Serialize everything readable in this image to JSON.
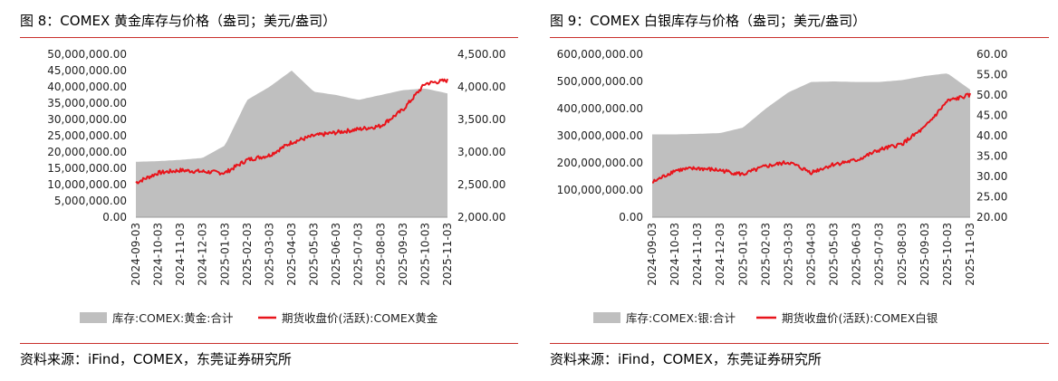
{
  "charts": [
    {
      "fig_title": "图 8：COMEX 黄金库存与价格（盎司；美元/盎司）",
      "source": "资料来源：iFind，COMEX，东莞证券研究所",
      "chart_data": {
        "type": "area+line",
        "x": [
          "2024-09-03",
          "2024-10-03",
          "2024-11-03",
          "2024-12-03",
          "2025-01-03",
          "2025-02-03",
          "2025-03-03",
          "2025-04-03",
          "2025-05-03",
          "2025-06-03",
          "2025-07-03",
          "2025-08-03",
          "2025-09-03",
          "2025-10-03",
          "2025-11-03"
        ],
        "y_left_ticks": [
          "50,000,000.00",
          "45,000,000.00",
          "40,000,000.00",
          "35,000,000.00",
          "30,000,000.00",
          "25,000,000.00",
          "20,000,000.00",
          "15,000,000.00",
          "10,000,000.00",
          "5,000,000.00",
          "0.00"
        ],
        "y_right_ticks": [
          "4,500.00",
          "4,000.00",
          "3,500.00",
          "3,000.00",
          "2,500.00",
          "2,000.00"
        ],
        "ylim_left": [
          0,
          50000000
        ],
        "ylim_right": [
          2000,
          4500
        ],
        "series": [
          {
            "name": "库存:COMEX:黄金:合计",
            "axis": "left",
            "kind": "area",
            "color": "#bfbfbf",
            "values": [
              17000000,
              17200000,
              17600000,
              18200000,
              22000000,
              36000000,
              40000000,
              45000000,
              38500000,
              37500000,
              36000000,
              37500000,
              39000000,
              39500000,
              38000000
            ]
          },
          {
            "name": "期货收盘价(活跃):COMEX黄金",
            "axis": "right",
            "kind": "line",
            "color": "#e8141b",
            "values": [
              2530,
              2680,
              2720,
              2700,
              2680,
              2880,
              2950,
              3150,
              3250,
              3300,
              3350,
              3400,
              3650,
              4050,
              4100
            ]
          }
        ],
        "legend_position": "bottom"
      }
    },
    {
      "fig_title": "图 9：COMEX 白银库存与价格（盎司；美元/盎司）",
      "source": "资料来源：iFind，COMEX，东莞证券研究所",
      "chart_data": {
        "type": "area+line",
        "x": [
          "2024-09-03",
          "2024-10-03",
          "2024-11-03",
          "2024-12-03",
          "2025-01-03",
          "2025-02-03",
          "2025-03-03",
          "2025-04-03",
          "2025-05-03",
          "2025-06-03",
          "2025-07-03",
          "2025-08-03",
          "2025-09-03",
          "2025-10-03",
          "2025-11-03"
        ],
        "y_left_ticks": [
          "600,000,000.00",
          "500,000,000.00",
          "400,000,000.00",
          "300,000,000.00",
          "200,000,000.00",
          "100,000,000.00",
          "0.00"
        ],
        "y_right_ticks": [
          "60.00",
          "55.00",
          "50.00",
          "45.00",
          "40.00",
          "35.00",
          "30.00",
          "25.00",
          "20.00"
        ],
        "ylim_left": [
          0,
          600000000
        ],
        "ylim_right": [
          20,
          60
        ],
        "series": [
          {
            "name": "库存:COMEX:银:合计",
            "axis": "left",
            "kind": "area",
            "color": "#bfbfbf",
            "values": [
              305000000,
              305000000,
              307000000,
              310000000,
              330000000,
              400000000,
              460000000,
              498000000,
              500000000,
              498000000,
              498000000,
              505000000,
              520000000,
              530000000,
              470000000
            ]
          },
          {
            "name": "期货收盘价(活跃):COMEX白银",
            "axis": "right",
            "kind": "line",
            "color": "#e8141b",
            "values": [
              28.5,
              31.5,
              32,
              31.5,
              30.5,
              32.5,
              33.5,
              31,
              33,
              34,
              36.5,
              38,
              42,
              48.5,
              50
            ]
          }
        ],
        "legend_position": "bottom"
      }
    }
  ]
}
